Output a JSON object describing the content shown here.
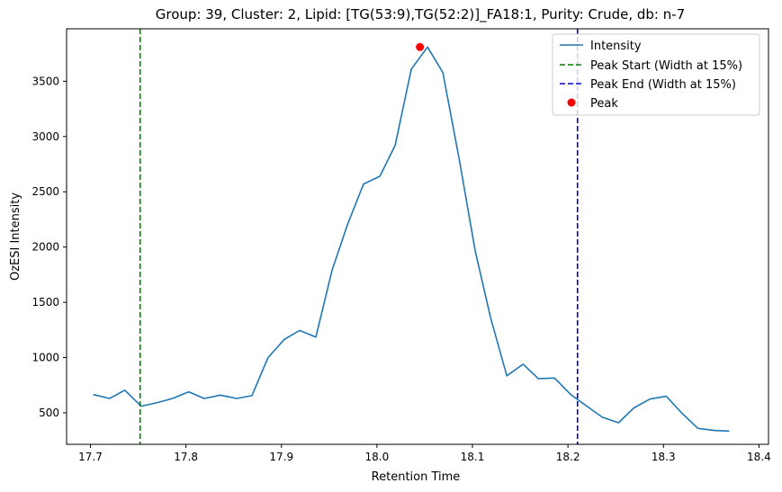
{
  "chart_data": {
    "type": "line",
    "title": "Group: 39, Cluster: 2, Lipid: [TG(53:9),TG(52:2)]_FA18:1, Purity: Crude, db: n-7",
    "xlabel": "Retention Time",
    "ylabel": "OzESI Intensity",
    "xlim": [
      17.675,
      18.41
    ],
    "ylim": [
      215,
      3975
    ],
    "xticks": [
      17.7,
      17.8,
      17.9,
      18.0,
      18.1,
      18.2,
      18.3,
      18.4
    ],
    "xtick_labels": [
      "17.7",
      "17.8",
      "17.9",
      "18.0",
      "18.1",
      "18.2",
      "18.3",
      "18.4"
    ],
    "yticks": [
      500,
      1000,
      1500,
      2000,
      2500,
      3000,
      3500
    ],
    "ytick_labels": [
      "500",
      "1000",
      "1500",
      "2000",
      "2500",
      "3000",
      "3500"
    ],
    "grid": false,
    "legend_position": "top-right",
    "series": [
      {
        "name": "Intensity",
        "color": "#1f77b4",
        "x": [
          17.703,
          17.72,
          17.736,
          17.753,
          17.769,
          17.786,
          17.803,
          17.819,
          17.836,
          17.853,
          17.869,
          17.886,
          17.903,
          17.919,
          17.936,
          17.953,
          17.969,
          17.986,
          18.003,
          18.019,
          18.036,
          18.053,
          18.069,
          18.086,
          18.103,
          18.119,
          18.136,
          18.153,
          18.169,
          18.186,
          18.203,
          18.219,
          18.236,
          18.253,
          18.269,
          18.286,
          18.303,
          18.319,
          18.336,
          18.353,
          18.369
        ],
        "y": [
          665,
          630,
          705,
          560,
          590,
          630,
          690,
          630,
          660,
          630,
          655,
          1000,
          1165,
          1245,
          1185,
          1790,
          2200,
          2570,
          2640,
          2920,
          3610,
          3810,
          3580,
          2800,
          1960,
          1360,
          835,
          940,
          810,
          815,
          665,
          565,
          460,
          410,
          545,
          625,
          650,
          500,
          360,
          340,
          335
        ]
      }
    ],
    "vlines": [
      {
        "name": "Peak Start (Width at 15%)",
        "x": 17.752,
        "color": "#008000",
        "style": "dashed"
      },
      {
        "name": "Peak End (Width at 15%)",
        "x": 18.21,
        "color": "#0000cc",
        "style": "dashed"
      }
    ],
    "peak": {
      "name": "Peak",
      "x": 18.045,
      "y": 3810,
      "color": "#ff0000"
    }
  }
}
